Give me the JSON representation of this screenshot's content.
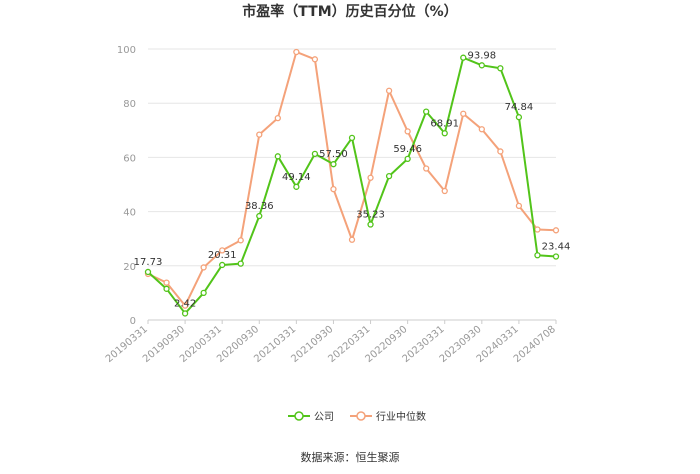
{
  "chart_data": {
    "type": "line",
    "title": "市盈率（TTM）历史百分位（%）",
    "source": "数据来源：恒生聚源",
    "ylim": [
      0,
      100
    ],
    "yticks": [
      "0",
      "20",
      "40",
      "60",
      "80",
      "100"
    ],
    "ytick_values": [
      0,
      20,
      40,
      60,
      80,
      100
    ],
    "grid": true,
    "legend_position": "bottom",
    "xtick_labels": [
      "20190331",
      "20190930",
      "20200331",
      "20200930",
      "20210331",
      "20210930",
      "20220331",
      "20220930",
      "20230331",
      "20230930",
      "20240331",
      "20240708"
    ],
    "xtick_indices": [
      0,
      2,
      4,
      6,
      8,
      10,
      12,
      14,
      16,
      18,
      20,
      22
    ],
    "x_count": 23,
    "series": [
      {
        "name": "公司",
        "color": "#52c41a",
        "values": [
          17.73,
          11.5,
          2.42,
          10.0,
          20.31,
          20.8,
          38.36,
          60.4,
          49.14,
          61.3,
          57.5,
          67.2,
          35.23,
          53.1,
          59.46,
          76.9,
          68.91,
          96.8,
          93.98,
          92.9,
          74.84,
          23.9,
          23.44
        ],
        "labels": {
          "0": "17.73",
          "2": "2.42",
          "4": "20.31",
          "6": "38.36",
          "8": "49.14",
          "10": "57.50",
          "12": "35.23",
          "14": "59.46",
          "16": "68.91",
          "18": "93.98",
          "20": "74.84",
          "22": "23.44"
        }
      },
      {
        "name": "行业中位数",
        "color": "#f4a27a",
        "values": [
          17.0,
          13.8,
          5.3,
          19.4,
          25.7,
          29.4,
          68.4,
          74.5,
          98.9,
          96.2,
          48.3,
          29.6,
          52.5,
          84.6,
          69.6,
          55.9,
          47.6,
          76.1,
          70.4,
          62.2,
          42.1,
          33.4,
          33.1
        ],
        "labels": {}
      }
    ]
  }
}
